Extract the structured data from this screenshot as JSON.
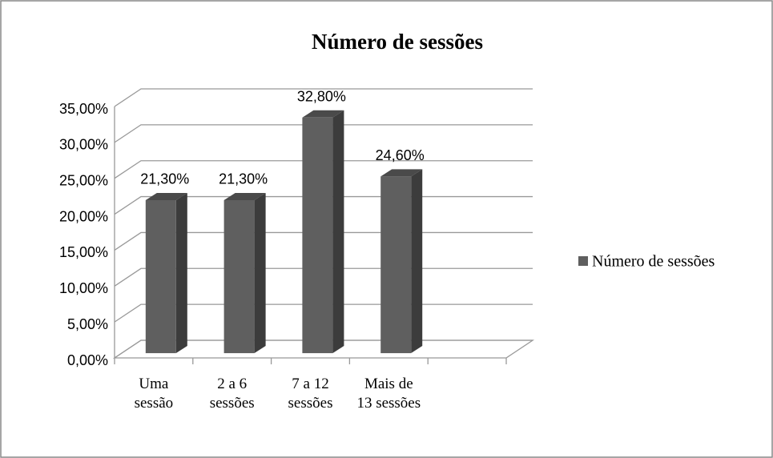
{
  "chart_data": {
    "type": "bar3d",
    "title": "Número de sessões",
    "categories": [
      "Uma sessão",
      "2 a 6 sessões",
      "7 a 12 sessões",
      "Mais de 13 sessões"
    ],
    "series": [
      {
        "name": "Número de sessões",
        "color": "#5f5f5f",
        "values": [
          21.3,
          21.3,
          32.8,
          24.6
        ],
        "value_labels": [
          "21,30%",
          "21,30%",
          "32,80%",
          "24,60%"
        ]
      }
    ],
    "ylim": [
      0,
      35
    ],
    "yticks": [
      {
        "value": 0,
        "label": "0,00%"
      },
      {
        "value": 5,
        "label": "5,00%"
      },
      {
        "value": 10,
        "label": "10,00%"
      },
      {
        "value": 15,
        "label": "15,00%"
      },
      {
        "value": 20,
        "label": "20,00%"
      },
      {
        "value": 25,
        "label": "25,00%"
      },
      {
        "value": 30,
        "label": "30,00%"
      },
      {
        "value": 35,
        "label": "35,00%"
      }
    ],
    "grid": true,
    "legend": "right"
  }
}
